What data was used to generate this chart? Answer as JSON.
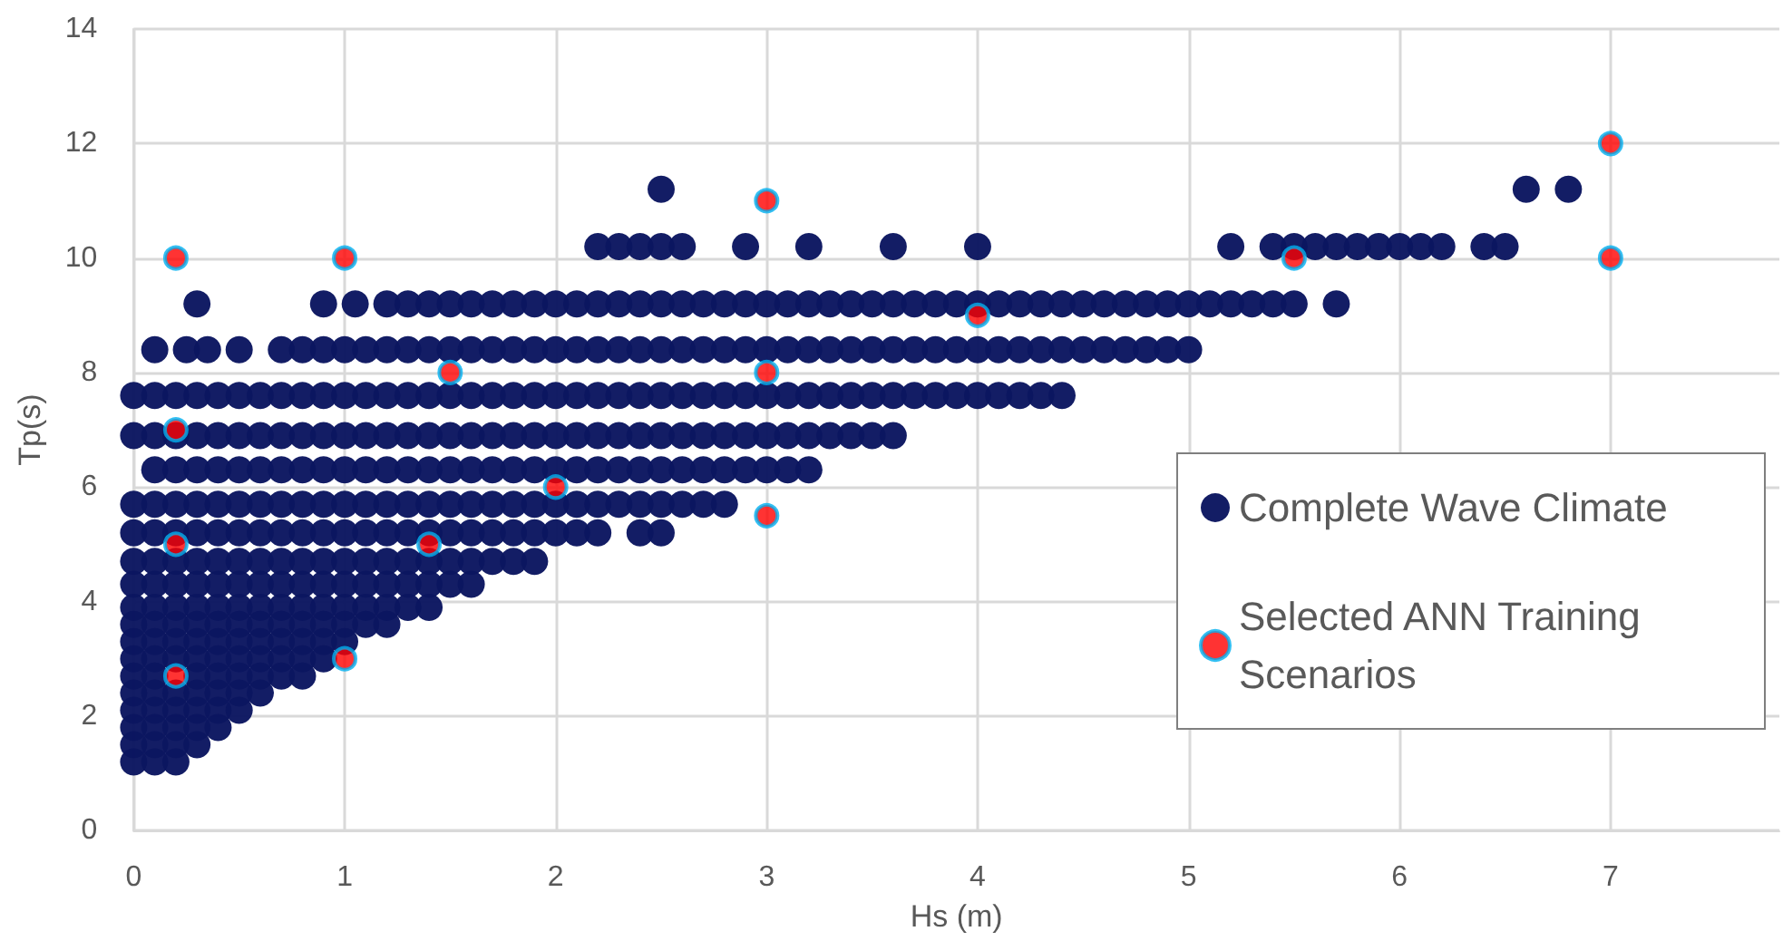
{
  "chart_data": {
    "type": "scatter",
    "xlabel": "Hs (m)",
    "ylabel": "Tp(s)",
    "xlim": [
      0,
      7.8
    ],
    "xticks": [
      0,
      1,
      2,
      3,
      4,
      5,
      6,
      7
    ],
    "ylim": [
      0,
      14
    ],
    "yticks": [
      0,
      2,
      4,
      6,
      8,
      10,
      12,
      14
    ],
    "grid": true,
    "legend": "right",
    "marker": "circle",
    "series": [
      {
        "name": "Complete Wave Climate",
        "color": "#0b1660",
        "x": [
          2.5,
          6.6,
          6.8,
          2.2,
          2.3,
          2.4,
          2.5,
          2.6,
          2.9,
          3.2,
          3.6,
          4,
          5.2,
          5.4,
          5.5,
          5.6,
          5.7,
          5.8,
          5.9,
          6,
          6.1,
          6.2,
          6.4,
          6.5,
          0.3,
          0.9,
          1.05,
          1.2,
          1.3,
          1.4,
          1.5,
          1.6,
          1.7,
          1.8,
          1.9,
          2,
          2.1,
          2.2,
          2.3,
          2.4,
          2.5,
          2.6,
          2.7,
          2.8,
          2.9,
          3,
          3.1,
          3.2,
          3.3,
          3.4,
          3.5,
          3.6,
          3.7,
          3.8,
          3.9,
          4,
          4.1,
          4.2,
          4.3,
          4.4,
          4.5,
          4.6,
          4.7,
          4.8,
          4.9,
          5,
          5.1,
          5.2,
          5.3,
          5.4,
          5.5,
          5.7,
          0.1,
          0.25,
          0.35,
          0.5,
          0.7,
          0.8,
          0.9,
          1,
          1.1,
          1.2,
          1.3,
          1.4,
          1.5,
          1.6,
          1.7,
          1.8,
          1.9,
          2,
          2.1,
          2.2,
          2.3,
          2.4,
          2.5,
          2.6,
          2.7,
          2.8,
          2.9,
          3,
          3.1,
          3.2,
          3.3,
          3.4,
          3.5,
          3.6,
          3.7,
          3.8,
          3.9,
          4,
          4.1,
          4.2,
          4.3,
          4.4,
          4.5,
          4.6,
          4.7,
          4.8,
          4.9,
          5,
          0,
          0.1,
          0.2,
          0.3,
          0.4,
          0.5,
          0.6,
          0.7,
          0.8,
          0.9,
          1,
          1.1,
          1.2,
          1.3,
          1.4,
          1.5,
          1.6,
          1.7,
          1.8,
          1.9,
          2,
          2.1,
          2.2,
          2.3,
          2.4,
          2.5,
          2.6,
          2.7,
          2.8,
          2.9,
          3,
          3.1,
          3.2,
          3.3,
          3.4,
          3.5,
          3.6,
          3.7,
          3.8,
          3.9,
          4,
          4.1,
          4.2,
          4.3,
          4.4,
          0,
          0.1,
          0.2,
          0.3,
          0.4,
          0.5,
          0.6,
          0.7,
          0.8,
          0.9,
          1,
          1.1,
          1.2,
          1.3,
          1.4,
          1.5,
          1.6,
          1.7,
          1.8,
          1.9,
          2,
          2.1,
          2.2,
          2.3,
          2.4,
          2.5,
          2.6,
          2.7,
          2.8,
          2.9,
          3,
          3.1,
          3.2,
          3.3,
          3.4,
          3.5,
          3.6,
          0.1,
          0.2,
          0.3,
          0.4,
          0.5,
          0.6,
          0.7,
          0.8,
          0.9,
          1,
          1.1,
          1.2,
          1.3,
          1.4,
          1.5,
          1.6,
          1.7,
          1.8,
          1.9,
          2,
          2.1,
          2.2,
          2.3,
          2.4,
          2.5,
          2.6,
          2.7,
          2.8,
          2.9,
          3,
          3.1,
          3.2,
          0,
          0.1,
          0.2,
          0.3,
          0.4,
          0.5,
          0.6,
          0.7,
          0.8,
          0.9,
          1,
          1.1,
          1.2,
          1.3,
          1.4,
          1.5,
          1.6,
          1.7,
          1.8,
          1.9,
          2,
          2.1,
          2.2,
          2.3,
          2.4,
          2.5,
          2.6,
          2.7,
          2.8,
          0,
          0.1,
          0.2,
          0.3,
          0.4,
          0.5,
          0.6,
          0.7,
          0.8,
          0.9,
          1,
          1.1,
          1.2,
          1.3,
          1.4,
          1.5,
          1.6,
          1.7,
          1.8,
          1.9,
          2,
          2.1,
          2.2,
          2.4,
          2.5,
          0,
          0.1,
          0.2,
          0.3,
          0.4,
          0.5,
          0.6,
          0.7,
          0.8,
          0.9,
          1,
          1.1,
          1.2,
          1.3,
          1.4,
          1.5,
          1.6,
          1.7,
          1.8,
          1.9,
          0,
          0.1,
          0.2,
          0.3,
          0.4,
          0.5,
          0.6,
          0.7,
          0.8,
          0.9,
          1,
          1.1,
          1.2,
          1.3,
          1.4,
          1.5,
          1.6,
          0,
          0.1,
          0.2,
          0.3,
          0.4,
          0.5,
          0.6,
          0.7,
          0.8,
          0.9,
          1,
          1.1,
          1.2,
          1.3,
          1.4,
          0,
          0.1,
          0.2,
          0.3,
          0.4,
          0.5,
          0.6,
          0.7,
          0.8,
          0.9,
          1,
          1.1,
          1.2,
          0,
          0.1,
          0.2,
          0.3,
          0.4,
          0.5,
          0.6,
          0.7,
          0.8,
          0.9,
          1,
          0,
          0.1,
          0.2,
          0.3,
          0.4,
          0.5,
          0.6,
          0.7,
          0.8,
          0.9,
          0,
          0.1,
          0.2,
          0.3,
          0.4,
          0.5,
          0.6,
          0.7,
          0.8,
          0,
          0.1,
          0.2,
          0.3,
          0.4,
          0.5,
          0.6,
          0,
          0.1,
          0.2,
          0.3,
          0.4,
          0.5,
          0,
          0.1,
          0.2,
          0.3,
          0.4,
          0,
          0.1,
          0.2,
          0.3,
          0,
          0.1,
          0.2
        ],
        "values": [
          11.2,
          11.2,
          11.2,
          10.2,
          10.2,
          10.2,
          10.2,
          10.2,
          10.2,
          10.2,
          10.2,
          10.2,
          10.2,
          10.2,
          10.2,
          10.2,
          10.2,
          10.2,
          10.2,
          10.2,
          10.2,
          10.2,
          10.2,
          10.2,
          9.2,
          9.2,
          9.2,
          9.2,
          9.2,
          9.2,
          9.2,
          9.2,
          9.2,
          9.2,
          9.2,
          9.2,
          9.2,
          9.2,
          9.2,
          9.2,
          9.2,
          9.2,
          9.2,
          9.2,
          9.2,
          9.2,
          9.2,
          9.2,
          9.2,
          9.2,
          9.2,
          9.2,
          9.2,
          9.2,
          9.2,
          9.2,
          9.2,
          9.2,
          9.2,
          9.2,
          9.2,
          9.2,
          9.2,
          9.2,
          9.2,
          9.2,
          9.2,
          9.2,
          9.2,
          9.2,
          9.2,
          9.2,
          8.4,
          8.4,
          8.4,
          8.4,
          8.4,
          8.4,
          8.4,
          8.4,
          8.4,
          8.4,
          8.4,
          8.4,
          8.4,
          8.4,
          8.4,
          8.4,
          8.4,
          8.4,
          8.4,
          8.4,
          8.4,
          8.4,
          8.4,
          8.4,
          8.4,
          8.4,
          8.4,
          8.4,
          8.4,
          8.4,
          8.4,
          8.4,
          8.4,
          8.4,
          8.4,
          8.4,
          8.4,
          8.4,
          8.4,
          8.4,
          8.4,
          8.4,
          8.4,
          8.4,
          8.4,
          8.4,
          8.4,
          8.4,
          7.6,
          7.6,
          7.6,
          7.6,
          7.6,
          7.6,
          7.6,
          7.6,
          7.6,
          7.6,
          7.6,
          7.6,
          7.6,
          7.6,
          7.6,
          7.6,
          7.6,
          7.6,
          7.6,
          7.6,
          7.6,
          7.6,
          7.6,
          7.6,
          7.6,
          7.6,
          7.6,
          7.6,
          7.6,
          7.6,
          7.6,
          7.6,
          7.6,
          7.6,
          7.6,
          7.6,
          7.6,
          7.6,
          7.6,
          7.6,
          7.6,
          7.6,
          7.6,
          7.6,
          7.6,
          6.9,
          6.9,
          6.9,
          6.9,
          6.9,
          6.9,
          6.9,
          6.9,
          6.9,
          6.9,
          6.9,
          6.9,
          6.9,
          6.9,
          6.9,
          6.9,
          6.9,
          6.9,
          6.9,
          6.9,
          6.9,
          6.9,
          6.9,
          6.9,
          6.9,
          6.9,
          6.9,
          6.9,
          6.9,
          6.9,
          6.9,
          6.9,
          6.9,
          6.9,
          6.9,
          6.9,
          6.9,
          6.3,
          6.3,
          6.3,
          6.3,
          6.3,
          6.3,
          6.3,
          6.3,
          6.3,
          6.3,
          6.3,
          6.3,
          6.3,
          6.3,
          6.3,
          6.3,
          6.3,
          6.3,
          6.3,
          6.3,
          6.3,
          6.3,
          6.3,
          6.3,
          6.3,
          6.3,
          6.3,
          6.3,
          6.3,
          6.3,
          6.3,
          6.3,
          5.7,
          5.7,
          5.7,
          5.7,
          5.7,
          5.7,
          5.7,
          5.7,
          5.7,
          5.7,
          5.7,
          5.7,
          5.7,
          5.7,
          5.7,
          5.7,
          5.7,
          5.7,
          5.7,
          5.7,
          5.7,
          5.7,
          5.7,
          5.7,
          5.7,
          5.7,
          5.7,
          5.7,
          5.7,
          5.2,
          5.2,
          5.2,
          5.2,
          5.2,
          5.2,
          5.2,
          5.2,
          5.2,
          5.2,
          5.2,
          5.2,
          5.2,
          5.2,
          5.2,
          5.2,
          5.2,
          5.2,
          5.2,
          5.2,
          5.2,
          5.2,
          5.2,
          5.2,
          5.2,
          4.7,
          4.7,
          4.7,
          4.7,
          4.7,
          4.7,
          4.7,
          4.7,
          4.7,
          4.7,
          4.7,
          4.7,
          4.7,
          4.7,
          4.7,
          4.7,
          4.7,
          4.7,
          4.7,
          4.7,
          4.3,
          4.3,
          4.3,
          4.3,
          4.3,
          4.3,
          4.3,
          4.3,
          4.3,
          4.3,
          4.3,
          4.3,
          4.3,
          4.3,
          4.3,
          4.3,
          4.3,
          3.9,
          3.9,
          3.9,
          3.9,
          3.9,
          3.9,
          3.9,
          3.9,
          3.9,
          3.9,
          3.9,
          3.9,
          3.9,
          3.9,
          3.9,
          3.6,
          3.6,
          3.6,
          3.6,
          3.6,
          3.6,
          3.6,
          3.6,
          3.6,
          3.6,
          3.6,
          3.6,
          3.6,
          3.3,
          3.3,
          3.3,
          3.3,
          3.3,
          3.3,
          3.3,
          3.3,
          3.3,
          3.3,
          3.3,
          3,
          3,
          3,
          3,
          3,
          3,
          3,
          3,
          3,
          3,
          2.7,
          2.7,
          null,
          2.7,
          2.7,
          2.7,
          2.7,
          2.7,
          2.7,
          2.4,
          2.4,
          2.4,
          2.4,
          2.4,
          2.4,
          2.4,
          2.1,
          2.1,
          2.1,
          2.1,
          2.1,
          2.1,
          1.8,
          1.8,
          1.8,
          1.8,
          1.8,
          1.5,
          1.5,
          1.5,
          1.5,
          1.2,
          1.2,
          1.2
        ]
      },
      {
        "name": "Selected ANN Training Scenarios",
        "color": "#ff0000",
        "x": [
          0.2,
          1,
          3,
          5.5,
          7,
          7,
          4,
          1.5,
          3,
          0.2,
          2,
          3,
          0.2,
          1.4,
          1,
          0.2
        ],
        "values": [
          10,
          10,
          11,
          10,
          12,
          10,
          9,
          8,
          8,
          7,
          6,
          5.5,
          5,
          5,
          3,
          2.7
        ]
      }
    ]
  }
}
